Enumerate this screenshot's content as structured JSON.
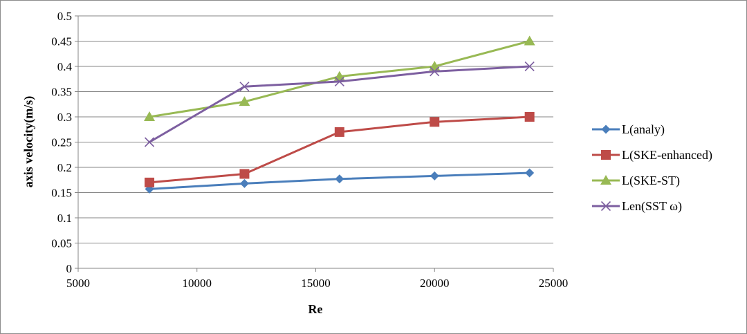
{
  "chart_data": {
    "type": "line",
    "xlabel": "Re",
    "ylabel": "axis velocity(m/s)",
    "xlim": [
      5000,
      25000
    ],
    "ylim": [
      0,
      0.5
    ],
    "x_ticks": [
      "5000",
      "10000",
      "15000",
      "20000",
      "25000"
    ],
    "y_ticks": [
      "0",
      "0.05",
      "0.1",
      "0.15",
      "0.2",
      "0.25",
      "0.3",
      "0.35",
      "0.4",
      "0.45",
      "0.5"
    ],
    "grid": "horizontal",
    "legend_position": "right",
    "x": [
      8000,
      12000,
      16000,
      20000,
      24000
    ],
    "series": [
      {
        "name": "L(analy)",
        "color": "#4a7ebb",
        "marker": "diamond",
        "values": [
          0.157,
          0.168,
          0.177,
          0.183,
          0.189
        ]
      },
      {
        "name": "L(SKE-enhanced)",
        "color": "#be4b48",
        "marker": "square",
        "values": [
          0.17,
          0.187,
          0.27,
          0.29,
          0.3
        ]
      },
      {
        "name": "L(SKE-ST)",
        "color": "#98b954",
        "marker": "triangle",
        "values": [
          0.3,
          0.33,
          0.38,
          0.4,
          0.45
        ]
      },
      {
        "name": "Len(SST ω)",
        "color": "#7d5fa0",
        "marker": "x",
        "values": [
          0.25,
          0.36,
          0.37,
          0.39,
          0.4
        ]
      }
    ]
  }
}
